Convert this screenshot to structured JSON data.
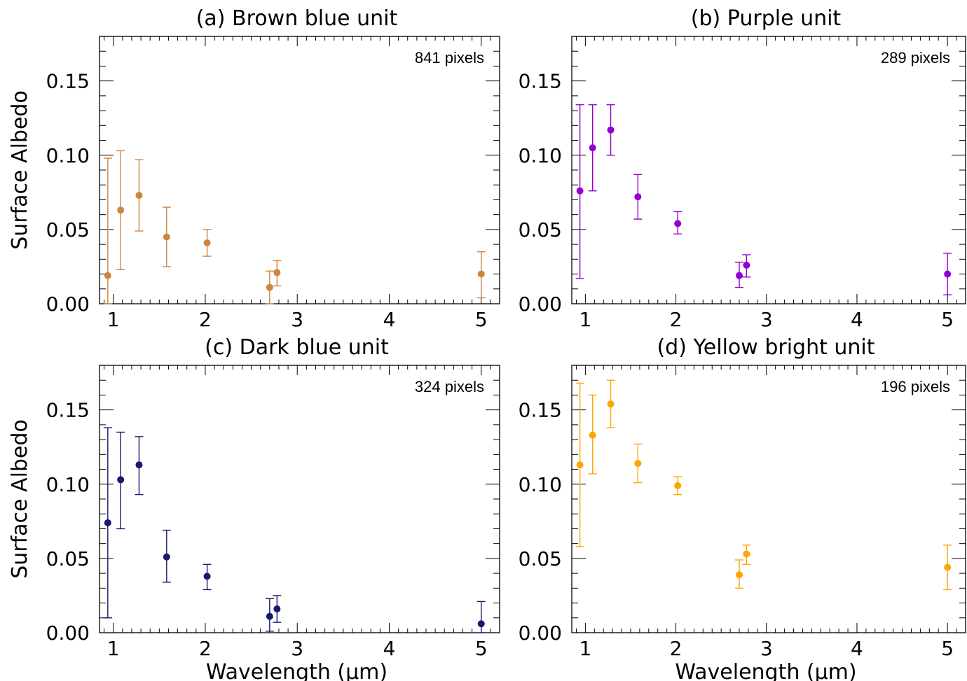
{
  "figure": {
    "ylabel": "Surface Albedo",
    "xlabel": "Wavelength (μm)"
  },
  "chart_data": [
    {
      "type": "scatter",
      "title": "(a) Brown blue unit",
      "annotation": "841 pixels",
      "color": "#cd853f",
      "xlim": [
        0.85,
        5.2
      ],
      "ylim": [
        0,
        0.18
      ],
      "xticks": [
        "1",
        "2",
        "3",
        "4",
        "5"
      ],
      "yticks": [
        "0.00",
        "0.05",
        "0.10",
        "0.15"
      ],
      "show_ylabel": true,
      "show_xlabel": false,
      "points": [
        {
          "x": 0.94,
          "y": 0.019,
          "lo": 0.0,
          "hi": 0.098
        },
        {
          "x": 1.08,
          "y": 0.063,
          "lo": 0.023,
          "hi": 0.103
        },
        {
          "x": 1.28,
          "y": 0.073,
          "lo": 0.049,
          "hi": 0.097
        },
        {
          "x": 1.58,
          "y": 0.045,
          "lo": 0.025,
          "hi": 0.065
        },
        {
          "x": 2.02,
          "y": 0.041,
          "lo": 0.032,
          "hi": 0.05
        },
        {
          "x": 2.7,
          "y": 0.011,
          "lo": 0.0,
          "hi": 0.022
        },
        {
          "x": 2.78,
          "y": 0.021,
          "lo": 0.012,
          "hi": 0.029
        },
        {
          "x": 5.0,
          "y": 0.02,
          "lo": 0.004,
          "hi": 0.035
        }
      ]
    },
    {
      "type": "scatter",
      "title": "(b) Purple unit",
      "annotation": "289 pixels",
      "color": "#9400d3",
      "xlim": [
        0.85,
        5.2
      ],
      "ylim": [
        0,
        0.18
      ],
      "xticks": [
        "1",
        "2",
        "3",
        "4",
        "5"
      ],
      "yticks": [
        "0.00",
        "0.05",
        "0.10",
        "0.15"
      ],
      "show_ylabel": false,
      "show_xlabel": false,
      "points": [
        {
          "x": 0.94,
          "y": 0.076,
          "lo": 0.017,
          "hi": 0.134
        },
        {
          "x": 1.08,
          "y": 0.105,
          "lo": 0.076,
          "hi": 0.134
        },
        {
          "x": 1.28,
          "y": 0.117,
          "lo": 0.1,
          "hi": 0.134
        },
        {
          "x": 1.58,
          "y": 0.072,
          "lo": 0.057,
          "hi": 0.087
        },
        {
          "x": 2.02,
          "y": 0.054,
          "lo": 0.047,
          "hi": 0.062
        },
        {
          "x": 2.7,
          "y": 0.019,
          "lo": 0.011,
          "hi": 0.028
        },
        {
          "x": 2.78,
          "y": 0.026,
          "lo": 0.018,
          "hi": 0.033
        },
        {
          "x": 5.0,
          "y": 0.02,
          "lo": 0.006,
          "hi": 0.034
        }
      ]
    },
    {
      "type": "scatter",
      "title": "(c) Dark blue unit",
      "annotation": "324 pixels",
      "color": "#191970",
      "xlim": [
        0.85,
        5.2
      ],
      "ylim": [
        0,
        0.18
      ],
      "xticks": [
        "1",
        "2",
        "3",
        "4",
        "5"
      ],
      "yticks": [
        "0.00",
        "0.05",
        "0.10",
        "0.15"
      ],
      "show_ylabel": true,
      "show_xlabel": true,
      "points": [
        {
          "x": 0.94,
          "y": 0.074,
          "lo": 0.01,
          "hi": 0.138
        },
        {
          "x": 1.08,
          "y": 0.103,
          "lo": 0.07,
          "hi": 0.135
        },
        {
          "x": 1.28,
          "y": 0.113,
          "lo": 0.093,
          "hi": 0.132
        },
        {
          "x": 1.58,
          "y": 0.051,
          "lo": 0.034,
          "hi": 0.069
        },
        {
          "x": 2.02,
          "y": 0.038,
          "lo": 0.029,
          "hi": 0.046
        },
        {
          "x": 2.7,
          "y": 0.011,
          "lo": 0.001,
          "hi": 0.023
        },
        {
          "x": 2.78,
          "y": 0.016,
          "lo": 0.007,
          "hi": 0.025
        },
        {
          "x": 5.0,
          "y": 0.006,
          "lo": 0.0,
          "hi": 0.021
        }
      ]
    },
    {
      "type": "scatter",
      "title": "(d) Yellow bright unit",
      "annotation": "196 pixels",
      "color": "#ffa500",
      "xlim": [
        0.85,
        5.2
      ],
      "ylim": [
        0,
        0.18
      ],
      "xticks": [
        "1",
        "2",
        "3",
        "4",
        "5"
      ],
      "yticks": [
        "0.00",
        "0.05",
        "0.10",
        "0.15"
      ],
      "show_ylabel": false,
      "show_xlabel": true,
      "points": [
        {
          "x": 0.94,
          "y": 0.113,
          "lo": 0.058,
          "hi": 0.168
        },
        {
          "x": 1.08,
          "y": 0.133,
          "lo": 0.107,
          "hi": 0.16
        },
        {
          "x": 1.28,
          "y": 0.154,
          "lo": 0.138,
          "hi": 0.17
        },
        {
          "x": 1.58,
          "y": 0.114,
          "lo": 0.101,
          "hi": 0.127
        },
        {
          "x": 2.02,
          "y": 0.099,
          "lo": 0.093,
          "hi": 0.105
        },
        {
          "x": 2.7,
          "y": 0.039,
          "lo": 0.03,
          "hi": 0.049
        },
        {
          "x": 2.78,
          "y": 0.053,
          "lo": 0.046,
          "hi": 0.059
        },
        {
          "x": 5.0,
          "y": 0.044,
          "lo": 0.029,
          "hi": 0.059
        }
      ]
    }
  ]
}
